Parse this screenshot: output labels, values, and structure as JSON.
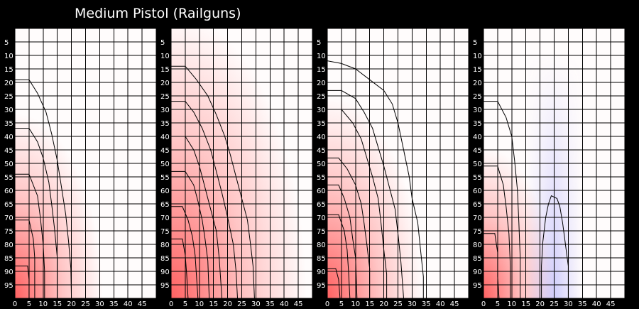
{
  "title": "Medium Pistol (Railguns)",
  "colors": {
    "background": "#000000",
    "grid": "#000000",
    "text": "#ffffff",
    "positive": "#ff5a5a",
    "negative": "#6a6aff"
  },
  "chart_data": [
    {
      "type": "heatmap",
      "xlim": [
        0,
        50
      ],
      "ylim": [
        0,
        100
      ],
      "x_ticks": [
        "0",
        "5",
        "10",
        "15",
        "20",
        "25",
        "30",
        "35",
        "40",
        "45"
      ],
      "y_ticks": [
        "5",
        "10",
        "15",
        "20",
        "25",
        "30",
        "35",
        "40",
        "45",
        "50",
        "55",
        "60",
        "65",
        "70",
        "75",
        "80",
        "85",
        "90",
        "95"
      ],
      "grid": true,
      "contours": [
        [
          [
            0,
            19
          ],
          [
            5,
            19
          ],
          [
            8,
            24
          ],
          [
            11,
            31
          ],
          [
            13,
            39
          ],
          [
            15,
            49
          ],
          [
            16.5,
            59
          ],
          [
            18,
            69
          ],
          [
            19,
            79
          ],
          [
            19.8,
            89
          ],
          [
            20,
            100
          ]
        ],
        [
          [
            0,
            37
          ],
          [
            5,
            37
          ],
          [
            8,
            42
          ],
          [
            10,
            48
          ],
          [
            12,
            57
          ],
          [
            13,
            65
          ],
          [
            14,
            74
          ],
          [
            15,
            85
          ],
          [
            15,
            100
          ]
        ],
        [
          [
            0,
            54
          ],
          [
            5,
            54
          ],
          [
            8,
            62
          ],
          [
            9,
            70
          ],
          [
            10,
            80
          ],
          [
            10.5,
            90
          ],
          [
            10.5,
            100
          ]
        ],
        [
          [
            0,
            71
          ],
          [
            5,
            71
          ],
          [
            6.5,
            78
          ],
          [
            7,
            85
          ],
          [
            7,
            100
          ]
        ],
        [
          [
            0,
            88
          ],
          [
            4.5,
            88
          ],
          [
            5,
            93
          ],
          [
            5,
            100
          ]
        ]
      ]
    },
    {
      "type": "heatmap",
      "xlim": [
        0,
        50
      ],
      "ylim": [
        0,
        100
      ],
      "x_ticks": [
        "0",
        "5",
        "10",
        "15",
        "20",
        "25",
        "30",
        "35",
        "40",
        "45"
      ],
      "y_ticks": [
        "5",
        "10",
        "15",
        "20",
        "25",
        "30",
        "35",
        "40",
        "45",
        "50",
        "55",
        "60",
        "65",
        "70",
        "75",
        "80",
        "85",
        "90",
        "95"
      ],
      "grid": true,
      "contours": [
        [
          [
            0,
            14
          ],
          [
            5,
            14
          ],
          [
            9,
            19
          ],
          [
            13,
            25
          ],
          [
            16,
            32
          ],
          [
            19,
            40
          ],
          [
            21,
            47
          ],
          [
            23,
            55
          ],
          [
            25,
            63
          ],
          [
            27,
            71
          ],
          [
            28,
            79
          ],
          [
            29,
            88
          ],
          [
            29.5,
            100
          ]
        ],
        [
          [
            0,
            27
          ],
          [
            5,
            27
          ],
          [
            8,
            31
          ],
          [
            11,
            37
          ],
          [
            14,
            45
          ],
          [
            16,
            53
          ],
          [
            18,
            61
          ],
          [
            20,
            70
          ],
          [
            22,
            80
          ],
          [
            23,
            90
          ],
          [
            23.5,
            100
          ]
        ],
        [
          [
            0,
            40
          ],
          [
            5,
            40
          ],
          [
            8,
            45
          ],
          [
            10,
            51
          ],
          [
            12,
            59
          ],
          [
            14,
            67
          ],
          [
            16,
            75
          ],
          [
            17,
            85
          ],
          [
            18,
            100
          ]
        ],
        [
          [
            0,
            53
          ],
          [
            5,
            53
          ],
          [
            8,
            58
          ],
          [
            9.5,
            64
          ],
          [
            11,
            71
          ],
          [
            12,
            78
          ],
          [
            13,
            86
          ],
          [
            13.5,
            100
          ]
        ],
        [
          [
            0,
            66
          ],
          [
            4,
            66
          ],
          [
            6,
            71
          ],
          [
            7.5,
            77
          ],
          [
            8.5,
            84
          ],
          [
            9,
            92
          ],
          [
            9.5,
            100
          ]
        ],
        [
          [
            0,
            78
          ],
          [
            4,
            78
          ],
          [
            5,
            84
          ],
          [
            5.5,
            91
          ],
          [
            6,
            100
          ]
        ]
      ]
    },
    {
      "type": "heatmap",
      "xlim": [
        0,
        50
      ],
      "ylim": [
        0,
        100
      ],
      "x_ticks": [
        "0",
        "5",
        "10",
        "15",
        "20",
        "25",
        "30",
        "35",
        "40",
        "45"
      ],
      "y_ticks": [
        "5",
        "10",
        "15",
        "20",
        "25",
        "30",
        "35",
        "40",
        "45",
        "50",
        "55",
        "60",
        "65",
        "70",
        "75",
        "80",
        "85",
        "90",
        "95"
      ],
      "grid": true,
      "contours": [
        [
          [
            0,
            12
          ],
          [
            5,
            13
          ],
          [
            10,
            15
          ],
          [
            15,
            19
          ],
          [
            20,
            23
          ],
          [
            23,
            28
          ],
          [
            25,
            35
          ],
          [
            27,
            45
          ],
          [
            29,
            55
          ],
          [
            30,
            63
          ],
          [
            32,
            72
          ],
          [
            33,
            82
          ],
          [
            34,
            92
          ],
          [
            34,
            100
          ]
        ],
        [
          [
            0,
            23
          ],
          [
            5,
            23
          ],
          [
            10,
            26
          ],
          [
            13,
            31
          ],
          [
            16,
            37
          ],
          [
            18,
            44
          ],
          [
            20,
            51
          ],
          [
            22,
            59
          ],
          [
            24,
            67
          ],
          [
            25,
            76
          ],
          [
            26,
            86
          ],
          [
            27,
            100
          ]
        ],
        [
          [
            0,
            30
          ],
          [
            5,
            30
          ],
          [
            9,
            35
          ],
          [
            12,
            41
          ],
          [
            14,
            48
          ],
          [
            16,
            55
          ],
          [
            18,
            63
          ],
          [
            19,
            72
          ],
          [
            20,
            82
          ],
          [
            21,
            91
          ],
          [
            21,
            100
          ]
        ],
        [
          [
            0,
            48
          ],
          [
            4,
            48
          ],
          [
            7,
            52
          ],
          [
            10,
            58
          ],
          [
            12,
            65
          ],
          [
            13,
            72
          ],
          [
            14,
            80
          ],
          [
            15,
            89
          ],
          [
            15,
            100
          ]
        ],
        [
          [
            0,
            58
          ],
          [
            4,
            58
          ],
          [
            6,
            63
          ],
          [
            8,
            70
          ],
          [
            9,
            78
          ],
          [
            10,
            85
          ],
          [
            10.5,
            100
          ]
        ],
        [
          [
            0,
            69
          ],
          [
            4,
            69
          ],
          [
            6,
            75
          ],
          [
            7,
            82
          ],
          [
            7.5,
            90
          ],
          [
            8,
            100
          ]
        ],
        [
          [
            0,
            89
          ],
          [
            3,
            89
          ],
          [
            4,
            93
          ],
          [
            4.5,
            100
          ]
        ]
      ]
    },
    {
      "type": "heatmap",
      "xlim": [
        0,
        50
      ],
      "ylim": [
        0,
        100
      ],
      "x_ticks": [
        "0",
        "5",
        "10",
        "15",
        "20",
        "25",
        "30",
        "35",
        "40",
        "45"
      ],
      "y_ticks": [
        "5",
        "10",
        "15",
        "20",
        "25",
        "30",
        "35",
        "40",
        "45",
        "50",
        "55",
        "60",
        "65",
        "70",
        "75",
        "80",
        "85",
        "90",
        "95"
      ],
      "grid": true,
      "contours": [
        [
          [
            0,
            27
          ],
          [
            5,
            27
          ],
          [
            8,
            33
          ],
          [
            10,
            40
          ],
          [
            11,
            49
          ],
          [
            12,
            60
          ],
          [
            12.5,
            72
          ],
          [
            13,
            85
          ],
          [
            13,
            100
          ]
        ],
        [
          [
            0,
            51
          ],
          [
            5,
            51
          ],
          [
            7,
            58
          ],
          [
            8,
            66
          ],
          [
            9,
            76
          ],
          [
            9.5,
            88
          ],
          [
            9.5,
            100
          ]
        ],
        [
          [
            0,
            76
          ],
          [
            4,
            76
          ],
          [
            5,
            83
          ],
          [
            5,
            92
          ],
          [
            5.5,
            100
          ]
        ],
        [
          [
            20.5,
            100
          ],
          [
            20.5,
            88
          ],
          [
            21,
            79
          ],
          [
            22,
            70
          ],
          [
            23,
            65
          ],
          [
            24,
            62
          ],
          [
            26,
            63
          ],
          [
            27,
            66
          ],
          [
            28,
            72
          ],
          [
            29,
            80
          ],
          [
            30,
            88
          ],
          [
            30,
            100
          ]
        ]
      ]
    }
  ]
}
